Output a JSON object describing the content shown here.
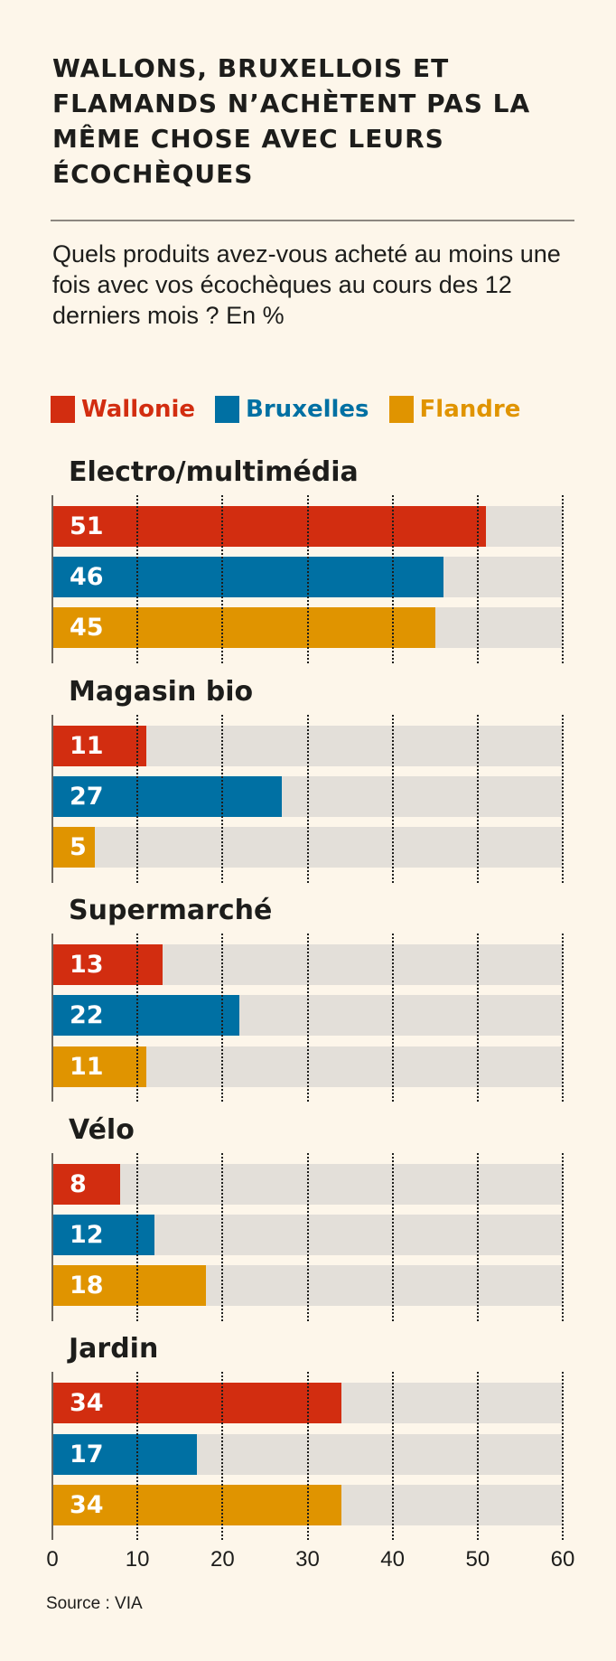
{
  "title": "WALLONS, BRUXELLOIS ET FLAMANDS N’ACHÈTENT PAS LA MÊME CHOSE AVEC LEURS ÉCOCHÈQUES",
  "subtitle": "Quels produits avez-vous acheté au moins une fois avec vos écochèques au cours des 12 derniers mois ? En %",
  "source": "Source : VIA",
  "chart_data": {
    "type": "bar",
    "orientation": "horizontal",
    "title": "WALLONS, BRUXELLOIS ET FLAMANDS N’ACHÈTENT PAS LA MÊME CHOSE AVEC LEURS ÉCOCHÈQUES",
    "subtitle": "Quels produits avez-vous acheté au moins une fois avec vos écochèques au cours des 12 derniers mois ? En %",
    "categories": [
      "Electro/multimédia",
      "Magasin bio",
      "Supermarché",
      "Vélo",
      "Jardin"
    ],
    "series": [
      {
        "name": "Wallonie",
        "color": "#d22d10",
        "values": [
          51,
          11,
          13,
          8,
          34
        ]
      },
      {
        "name": "Bruxelles",
        "color": "#0070a3",
        "values": [
          46,
          27,
          22,
          12,
          17
        ]
      },
      {
        "name": "Flandre",
        "color": "#e09400",
        "values": [
          45,
          5,
          11,
          18,
          34
        ]
      }
    ],
    "xlim": [
      0,
      60
    ],
    "ticks": [
      "0",
      "10",
      "20",
      "30",
      "40",
      "50",
      "60"
    ],
    "grid": "dotted vertical",
    "legend": "top",
    "track_color": "#e3dfd9"
  }
}
